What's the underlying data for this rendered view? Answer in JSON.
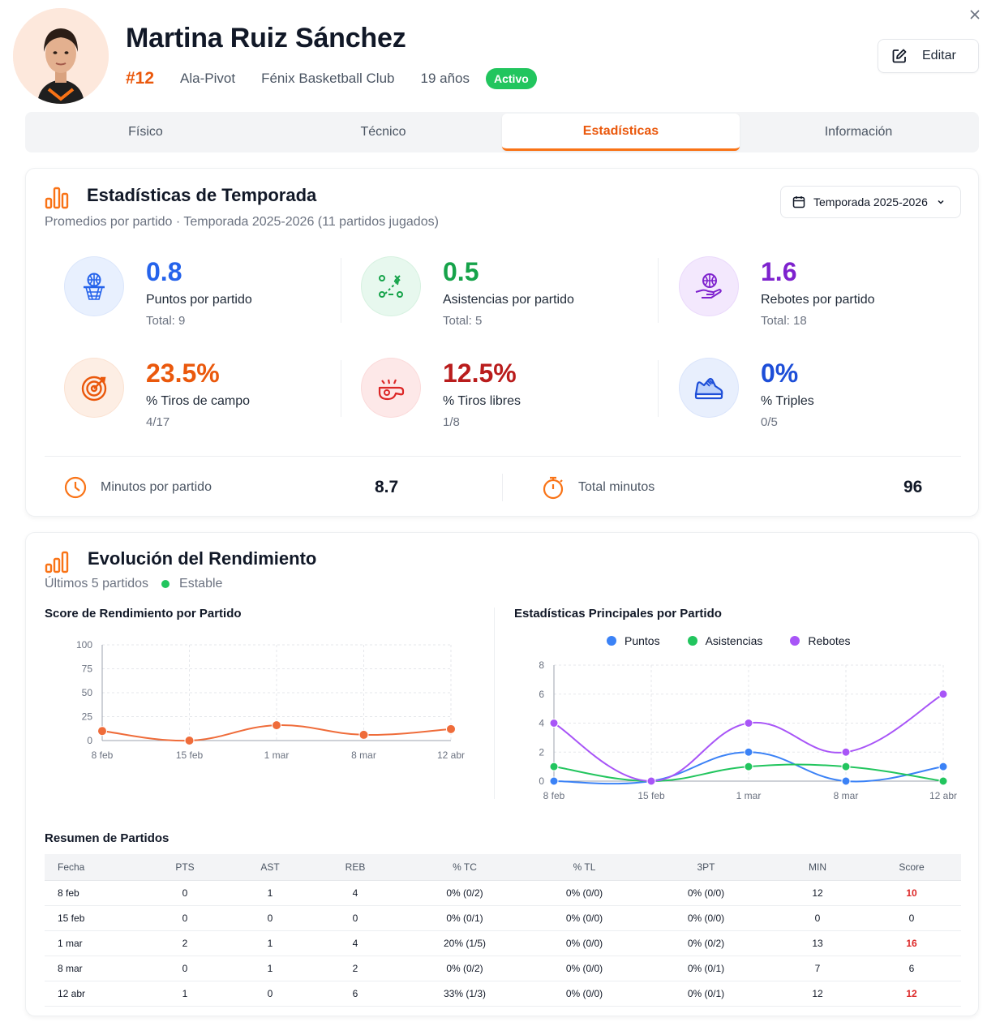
{
  "header": {
    "name": "Martina Ruiz Sánchez",
    "number": "#12",
    "position": "Ala-Pivot",
    "club": "Fénix Basketball Club",
    "age": "19 años",
    "status": "Activo",
    "edit_label": "Editar",
    "close_icon": "×"
  },
  "tabs": [
    {
      "label": "Físico",
      "active": false
    },
    {
      "label": "Técnico",
      "active": false
    },
    {
      "label": "Estadísticas",
      "active": true
    },
    {
      "label": "Información",
      "active": false
    }
  ],
  "season_stats": {
    "title": "Estadísticas de Temporada",
    "subtitle": "Promedios por partido · Temporada 2025-2026 (11 partidos jugados)",
    "season_select": "Temporada 2025-2026",
    "stats": [
      {
        "value": "0.8",
        "label": "Puntos por partido",
        "total": "Total: 9",
        "color": "#2563eb",
        "bg": "#e8f0fe",
        "icon": "basketball-hoop-icon"
      },
      {
        "value": "0.5",
        "label": "Asistencias por partido",
        "total": "Total: 5",
        "color": "#16a34a",
        "bg": "#e7f8ee",
        "icon": "play-diagram-icon"
      },
      {
        "value": "1.6",
        "label": "Rebotes por partido",
        "total": "Total: 18",
        "color": "#7e22ce",
        "bg": "#f3e8fd",
        "icon": "hand-ball-icon"
      },
      {
        "value": "23.5%",
        "label": "% Tiros de campo",
        "total": "4/17",
        "color": "#ea580c",
        "bg": "#fdeee4",
        "icon": "target-icon"
      },
      {
        "value": "12.5%",
        "label": "% Tiros libres",
        "total": "1/8",
        "color": "#b91c1c",
        "bg": "#fde8e8",
        "icon": "whistle-icon"
      },
      {
        "value": "0%",
        "label": "% Triples",
        "total": "0/5",
        "color": "#1d4ed8",
        "bg": "#e8effd",
        "icon": "sneaker-icon"
      }
    ],
    "minutes_label": "Minutos por partido",
    "minutes_value": "8.7",
    "total_minutes_label": "Total minutos",
    "total_minutes_value": "96"
  },
  "performance": {
    "title": "Evolución del Rendimiento",
    "subtitle": "Últimos 5 partidos",
    "trend": "Estable",
    "score_chart_title": "Score de Rendimiento por Partido",
    "stats_chart_title": "Estadísticas Principales por Partido",
    "table_title": "Resumen de Partidos",
    "table_headers": [
      "Fecha",
      "PTS",
      "AST",
      "REB",
      "% TC",
      "% TL",
      "3PT",
      "MIN",
      "Score"
    ],
    "rows": [
      [
        "8 feb",
        "0",
        "1",
        "4",
        "0% (0/2)",
        "0% (0/0)",
        "0% (0/0)",
        "12",
        "10"
      ],
      [
        "15 feb",
        "0",
        "0",
        "0",
        "0% (0/1)",
        "0% (0/0)",
        "0% (0/0)",
        "0",
        "0"
      ],
      [
        "1 mar",
        "2",
        "1",
        "4",
        "20% (1/5)",
        "0% (0/0)",
        "0% (0/2)",
        "13",
        "16"
      ],
      [
        "8 mar",
        "0",
        "1",
        "2",
        "0% (0/2)",
        "0% (0/0)",
        "0% (0/1)",
        "7",
        "6"
      ],
      [
        "12 abr",
        "1",
        "0",
        "6",
        "33% (1/3)",
        "0% (0/0)",
        "0% (0/1)",
        "12",
        "12"
      ]
    ],
    "highlighted_scores": [
      "10",
      "16",
      "12"
    ]
  },
  "chart_data": [
    {
      "type": "line",
      "title": "Score de Rendimiento por Partido",
      "categories": [
        "8 feb",
        "15 feb",
        "1 mar",
        "8 mar",
        "12 abr"
      ],
      "series": [
        {
          "values": [
            10,
            0,
            16,
            6,
            12
          ],
          "color": "#ef6c3a"
        }
      ],
      "yticks": [
        0,
        25,
        50,
        75,
        100
      ],
      "ylim": [
        0,
        100
      ],
      "grid": true
    },
    {
      "type": "line",
      "title": "Estadísticas Principales por Partido",
      "categories": [
        "8 feb",
        "15 feb",
        "1 mar",
        "8 mar",
        "12 abr"
      ],
      "series": [
        {
          "name": "Puntos",
          "values": [
            0,
            0,
            2,
            0,
            1
          ],
          "color": "#3b82f6"
        },
        {
          "name": "Asistencias",
          "values": [
            1,
            0,
            1,
            1,
            0
          ],
          "color": "#22c55e"
        },
        {
          "name": "Rebotes",
          "values": [
            4,
            0,
            4,
            2,
            6
          ],
          "color": "#a855f7"
        }
      ],
      "yticks": [
        0,
        2,
        4,
        6,
        8
      ],
      "ylim": [
        0,
        8
      ],
      "legend": "top-center",
      "grid": true
    }
  ]
}
